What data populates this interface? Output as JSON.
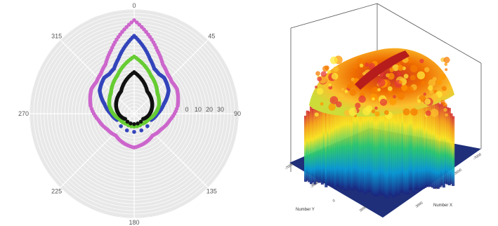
{
  "chart_data": [
    {
      "type": "polar-scatter",
      "angle_ticks": [
        "0",
        "45",
        "90",
        "135",
        "180",
        "225",
        "270",
        "315"
      ],
      "radial_ticks": [
        "0",
        "10",
        "20",
        "30"
      ],
      "background_fill": "#e8e8e8",
      "grid": true,
      "series": [
        {
          "color": "#cc66cc",
          "points": [
            [
              0,
              36
            ],
            [
              10,
              31
            ],
            [
              20,
              26
            ],
            [
              30,
              22
            ],
            [
              40,
              20
            ],
            [
              50,
              19
            ],
            [
              60,
              19
            ],
            [
              70,
              18
            ],
            [
              80,
              17
            ],
            [
              100,
              14
            ],
            [
              120,
              12
            ],
            [
              140,
              11
            ],
            [
              160,
              12
            ],
            [
              180,
              13
            ],
            [
              200,
              12
            ],
            [
              220,
              11
            ],
            [
              240,
              12
            ],
            [
              260,
              14
            ],
            [
              280,
              17
            ],
            [
              290,
              18
            ],
            [
              300,
              19
            ],
            [
              310,
              19
            ],
            [
              320,
              20
            ],
            [
              330,
              22
            ],
            [
              340,
              26
            ],
            [
              350,
              31
            ]
          ]
        },
        {
          "color": "#3344bb",
          "points": [
            [
              0,
              30
            ],
            [
              8,
              26
            ],
            [
              16,
              22
            ],
            [
              24,
              19
            ],
            [
              32,
              18
            ],
            [
              40,
              18
            ],
            [
              48,
              17
            ],
            [
              56,
              16
            ],
            [
              64,
              14
            ],
            [
              72,
              12
            ],
            [
              90,
              9
            ],
            [
              110,
              7
            ],
            [
              250,
              7
            ],
            [
              270,
              9
            ],
            [
              288,
              12
            ],
            [
              296,
              14
            ],
            [
              304,
              16
            ],
            [
              312,
              17
            ],
            [
              320,
              18
            ],
            [
              328,
              18
            ],
            [
              336,
              19
            ],
            [
              344,
              22
            ],
            [
              352,
              26
            ]
          ]
        },
        {
          "color": "#66cc33",
          "points": [
            [
              0,
              22
            ],
            [
              12,
              19
            ],
            [
              24,
              16
            ],
            [
              36,
              14
            ],
            [
              48,
              12
            ],
            [
              60,
              11
            ],
            [
              72,
              10
            ],
            [
              90,
              8
            ],
            [
              110,
              6
            ],
            [
              140,
              5
            ],
            [
              220,
              5
            ],
            [
              250,
              6
            ],
            [
              270,
              8
            ],
            [
              288,
              10
            ],
            [
              300,
              11
            ],
            [
              312,
              12
            ],
            [
              324,
              14
            ],
            [
              336,
              16
            ],
            [
              348,
              19
            ]
          ]
        },
        {
          "color": "#111111",
          "points": [
            [
              0,
              16
            ],
            [
              15,
              13
            ],
            [
              30,
              10
            ],
            [
              45,
              9
            ],
            [
              60,
              8
            ],
            [
              75,
              7
            ],
            [
              90,
              6
            ],
            [
              120,
              4
            ],
            [
              240,
              4
            ],
            [
              270,
              6
            ],
            [
              285,
              7
            ],
            [
              300,
              8
            ],
            [
              315,
              9
            ],
            [
              330,
              10
            ],
            [
              345,
              13
            ]
          ]
        }
      ]
    },
    {
      "type": "surface3d",
      "colormap": [
        "#1a237e",
        "#0a9bd6",
        "#2ecc71",
        "#f7e11b",
        "#f39c12",
        "#d32f2f"
      ],
      "floor_color": "#1f2f7a",
      "x_label": "Number X",
      "y_label": "Number Y",
      "x_ticks": [
        "-7000",
        "-3500",
        "0",
        "3500"
      ],
      "y_ticks": [
        "-7000",
        "-3500",
        "0",
        "3500"
      ]
    }
  ]
}
